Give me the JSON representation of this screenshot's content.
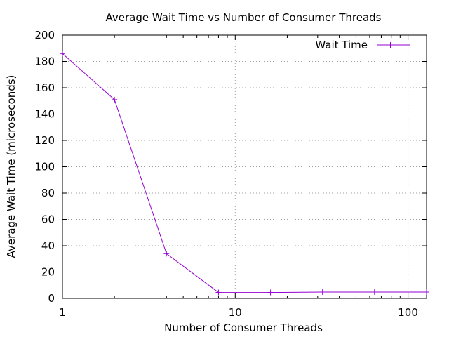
{
  "chart_data": {
    "type": "line",
    "title": "Average Wait Time vs Number of Consumer Threads",
    "xlabel": "Number of Consumer Threads",
    "ylabel": "Average Wait Time (microseconds)",
    "x_scale": "log",
    "xlim": [
      1,
      128
    ],
    "ylim": [
      0,
      200
    ],
    "x_ticks": [
      1,
      10,
      100
    ],
    "y_ticks": [
      0,
      20,
      40,
      60,
      80,
      100,
      120,
      140,
      160,
      180,
      200
    ],
    "grid": true,
    "legend_position": "top-right",
    "series": [
      {
        "name": "Wait Time",
        "color": "#9400d3",
        "marker": "plus",
        "x": [
          1,
          2,
          4,
          8,
          16,
          32,
          64,
          128
        ],
        "values": [
          186,
          151,
          34,
          4.5,
          4.5,
          4.8,
          4.8,
          4.8
        ]
      }
    ]
  }
}
